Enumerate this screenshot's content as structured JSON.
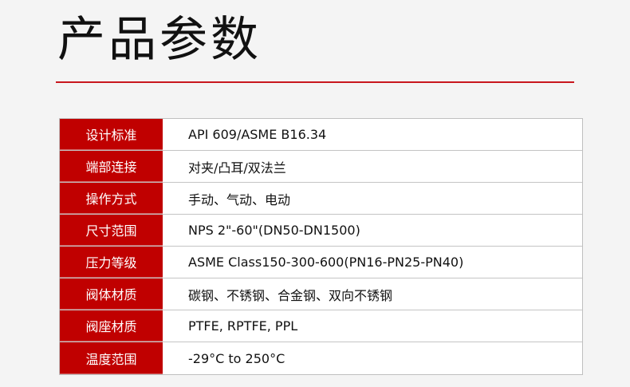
{
  "title": "产品参数",
  "colors": {
    "accent": "#c00000",
    "rule": "#c8161d"
  },
  "rows": [
    {
      "label": "设计标准",
      "value": "API 609/ASME B16.34"
    },
    {
      "label": "端部连接",
      "value": "对夹/凸耳/双法兰"
    },
    {
      "label": "操作方式",
      "value": "手动、气动、电动"
    },
    {
      "label": "尺寸范围",
      "value": "NPS 2\"-60\"(DN50-DN1500)"
    },
    {
      "label": "压力等级",
      "value": "ASME Class150-300-600(PN16-PN25-PN40)"
    },
    {
      "label": "阀体材质",
      "value": "碳钢、不锈钢、合金钢、双向不锈钢"
    },
    {
      "label": "阀座材质",
      "value": "PTFE, RPTFE, PPL"
    },
    {
      "label": "温度范围",
      "value": "-29°C to 250°C"
    }
  ]
}
